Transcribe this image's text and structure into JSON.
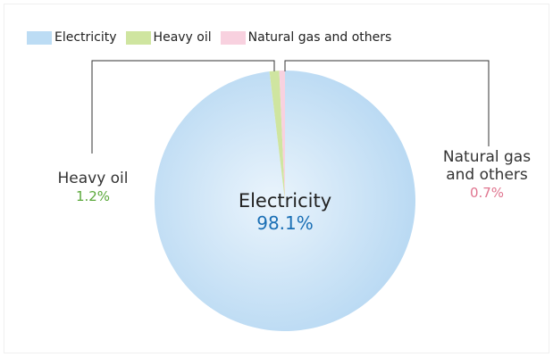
{
  "chart_data": {
    "type": "pie",
    "legend_position": "top-left",
    "series": [
      {
        "name": "Electricity",
        "value": 98.1,
        "value_label": "98.1%",
        "color": "#bcdcf4",
        "label_color": "#1a6fb5"
      },
      {
        "name": "Heavy oil",
        "value": 1.2,
        "value_label": "1.2%",
        "color": "#cfe5a0",
        "label_color": "#5aa83a"
      },
      {
        "name": "Natural gas and others",
        "value": 0.7,
        "value_label": "0.7%",
        "color": "#f8d1df",
        "label_color": "#e0758f"
      }
    ]
  },
  "labels": {
    "heavy_oil": {
      "name": "Heavy oil",
      "value": "1.2%"
    },
    "natural_gas": {
      "name_line1": "Natural gas",
      "name_line2": "and others",
      "value": "0.7%"
    },
    "electricity": {
      "name": "Electricity",
      "value": "98.1%"
    }
  }
}
